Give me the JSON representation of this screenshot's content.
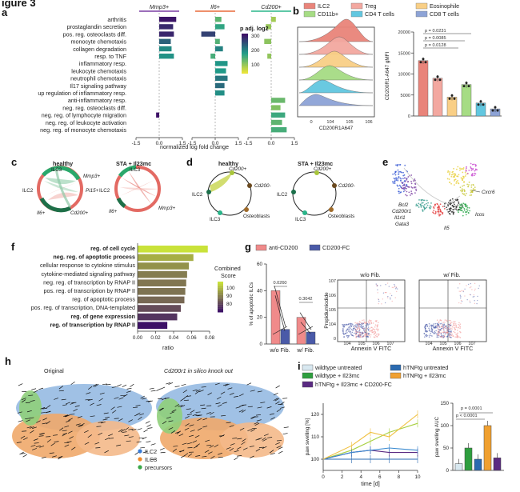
{
  "figure_header": "igure 3",
  "panel_letters": {
    "a": "a",
    "b": "b",
    "c": "c",
    "d": "d",
    "e": "e",
    "f": "f",
    "g": "g",
    "h": "h",
    "i": "i"
  },
  "chart_data": [
    {
      "panel": "a",
      "type": "bar",
      "title": "",
      "columns": [
        "Mmp3+",
        "Il6+",
        "Cd200+"
      ],
      "categories": [
        "arthritis",
        "prostaglandin secretion",
        "pos. reg. osteoclasts diff.",
        "monocyte chemotaxis",
        "collagen degradation",
        "resp. to TNF",
        "inflammatory resp.",
        "leukocyte chemotaxis",
        "neutrophil chemotaxis",
        "Il17 signaling pathway",
        "up regulation of inflammatory resp.",
        "anti-inflammatory resp.",
        "neg. reg. osteoclasts diff.",
        "neg. reg. of lymphocyte migration",
        "neg. reg. of leukocyte activation",
        "neg. reg. of monocyte chemotaxis"
      ],
      "series": [
        {
          "name": "Mmp3+",
          "values": [
            1.1,
            0.9,
            0.95,
            0.75,
            0.8,
            0.95,
            0,
            0,
            0,
            0,
            0,
            0,
            0,
            -0.2,
            0,
            0
          ],
          "padj": [
            345,
            320,
            325,
            250,
            200,
            190,
            0,
            0,
            0,
            0,
            0,
            0,
            0,
            350,
            0,
            0
          ]
        },
        {
          "name": "Il6+",
          "values": [
            0.4,
            0.6,
            -0.9,
            0.3,
            0.5,
            -0.3,
            0.8,
            0.7,
            0.8,
            0.6,
            0.6,
            0,
            0,
            0,
            0,
            0
          ],
          "padj": [
            120,
            160,
            290,
            130,
            210,
            140,
            185,
            180,
            225,
            240,
            195,
            0,
            0,
            0,
            0,
            0
          ]
        },
        {
          "name": "Cd200+",
          "values": [
            0.3,
            -0.35,
            0,
            -0.45,
            0,
            -0.25,
            0,
            0,
            0,
            0,
            0,
            0.9,
            0.6,
            0.9,
            0.7,
            1.0
          ],
          "padj": [
            60,
            70,
            0,
            80,
            0,
            75,
            0,
            0,
            0,
            0,
            0,
            110,
            90,
            150,
            120,
            140
          ]
        }
      ],
      "xticks": [
        "-1.5",
        "0.0",
        "1.5"
      ],
      "xlabel": "normalized log fold change",
      "colorbar": {
        "label": "p adj. log2",
        "ticks": [
          "300",
          "200",
          "100"
        ],
        "colors": [
          "#3d1167",
          "#1f8a8a",
          "#e8e33a"
        ]
      }
    },
    {
      "panel": "b",
      "type": "bar",
      "legend": [
        "ILC2",
        "Treg",
        "Eosinophile",
        "CD11b+",
        "CD4 T cells",
        "CD8 T cells"
      ],
      "colors": [
        "#e9847a",
        "#f3a8a0",
        "#f9cf86",
        "#a6dc84",
        "#62c7e0",
        "#8da3d6"
      ],
      "histogram_xlabel": "CD200R1A647",
      "histogram_xticks": [
        "0",
        "10^4",
        "10^5",
        "10^6"
      ],
      "categories": [
        "ILC2",
        "Treg",
        "Eosinophile",
        "CD11b+",
        "CD4 T cells",
        "CD8 T cells"
      ],
      "values": [
        13200,
        9000,
        4500,
        7500,
        3100,
        1700
      ],
      "ylabel": "CD200R1-A647 gMFI",
      "ylim": [
        0,
        20000
      ],
      "yticks": [
        "0",
        "5000",
        "10000",
        "15000",
        "20000"
      ],
      "pvalues": [
        "p = 0.0231",
        "p = 0.0085",
        "p = 0.0128"
      ]
    },
    {
      "panel": "f",
      "type": "bar",
      "categories": [
        "reg. of cell cycle",
        "neg. reg. of apoptotic process",
        "cellular response to cytokine stimulus",
        "cytokine-mediated signaling pathway",
        "neg. reg. of transcription by RNAP II",
        "pos. reg. of transcription by RNAP II",
        "reg. of apoptotic process",
        "pos. reg. of transcription, DNA-templated",
        "reg. of gene expression",
        "reg. of transcription by RNAP II"
      ],
      "values": [
        0.078,
        0.062,
        0.057,
        0.055,
        0.054,
        0.053,
        0.052,
        0.048,
        0.044,
        0.033
      ],
      "scores": [
        115,
        100,
        92,
        86,
        84,
        83,
        80,
        72,
        65,
        55
      ],
      "xlabel": "ratio",
      "xticks": [
        "0.00",
        "0.02",
        "0.04",
        "0.06",
        "0.08"
      ],
      "xlim": [
        0,
        0.08
      ],
      "colorbar": {
        "label": "Combined Score",
        "ticks": [
          "100",
          "90",
          "80"
        ]
      }
    },
    {
      "panel": "g",
      "type": "bar",
      "legend": [
        "anti-CD200",
        "CD200-FC"
      ],
      "categories": [
        "w/o Fib.",
        "w/ Fib."
      ],
      "series": [
        {
          "name": "anti-CD200",
          "values": [
            40,
            20
          ]
        },
        {
          "name": "CD200-FC",
          "values": [
            11,
            9
          ]
        }
      ],
      "ylabel": "% of apoptotic ILCs",
      "ylim": [
        0,
        60
      ],
      "yticks": [
        "0",
        "20",
        "40",
        "60"
      ],
      "pvalues": [
        "0.0260",
        "0.3042"
      ]
    },
    {
      "panel": "i",
      "type": "line",
      "legend": [
        "wildtype untreated",
        "wildtype + Il23mc",
        "hTNFtg + Il23mc + CD200-FC",
        "hTNFtg untreated",
        "hTNFtg + Il23mc"
      ],
      "x": [
        0,
        3,
        5,
        7,
        10
      ],
      "series": [
        {
          "name": "wildtype untreated",
          "values": [
            100,
            100,
            100,
            100,
            100
          ]
        },
        {
          "name": "wildtype + Il23mc",
          "values": [
            100,
            104,
            108,
            112,
            116
          ]
        },
        {
          "name": "hTNFtg + Il23mc + CD200-FC",
          "values": [
            100,
            103,
            104,
            103,
            103
          ]
        },
        {
          "name": "hTNFtg untreated",
          "values": [
            100,
            103,
            104,
            105,
            104
          ]
        },
        {
          "name": "hTNFtg + Il23mc",
          "values": [
            100,
            106,
            112,
            110,
            120
          ]
        }
      ],
      "xlabel": "time [d]",
      "ylabel": "paw swelling [%]",
      "ylim": [
        95,
        125
      ],
      "yticks": [
        "100",
        "110",
        "120"
      ],
      "xticks": [
        "0",
        "2",
        "4",
        "6",
        "8",
        "10"
      ],
      "auc": {
        "ylabel": "paw swelling AUC",
        "values": [
          15,
          50,
          25,
          100,
          28
        ],
        "ylim": [
          0,
          150
        ],
        "yticks": [
          "0",
          "50",
          "100",
          "150"
        ],
        "pvalues": [
          "p = 0.0001",
          "p < 0.0001"
        ]
      }
    }
  ],
  "panel_c": {
    "healthy": "healthy",
    "sta": "STA + Il23mc",
    "labels": [
      "ILC3",
      "Mmp3+",
      "Pi15+",
      "Cd200+",
      "Il6+",
      "ILC2"
    ]
  },
  "panel_d": {
    "healthy": "healthy",
    "sta": "STA + Il23mc",
    "labels": [
      "Cd200+",
      "Cd200-",
      "ILC2",
      "ILC3",
      "Osteoblasts"
    ]
  },
  "panel_e": {
    "genes": [
      "Cxcr6",
      "Bcl2",
      "Cd200r1",
      "Il1rl1",
      "Gata3",
      "Il5",
      "Icos"
    ]
  },
  "panel_g_flow": {
    "titles": [
      "w/o Fib.",
      "w/ Fib."
    ],
    "xlabel": "Annexin V FITC",
    "ylabel": "Propidiumiodide",
    "ticks": [
      "0",
      "10^4",
      "10^5",
      "10^6",
      "10^7"
    ]
  },
  "panel_h": {
    "titles": [
      "Original",
      "Cd200r1 in silico knock out"
    ],
    "legend": [
      "ILC2",
      "ILC3",
      "precursors"
    ]
  }
}
